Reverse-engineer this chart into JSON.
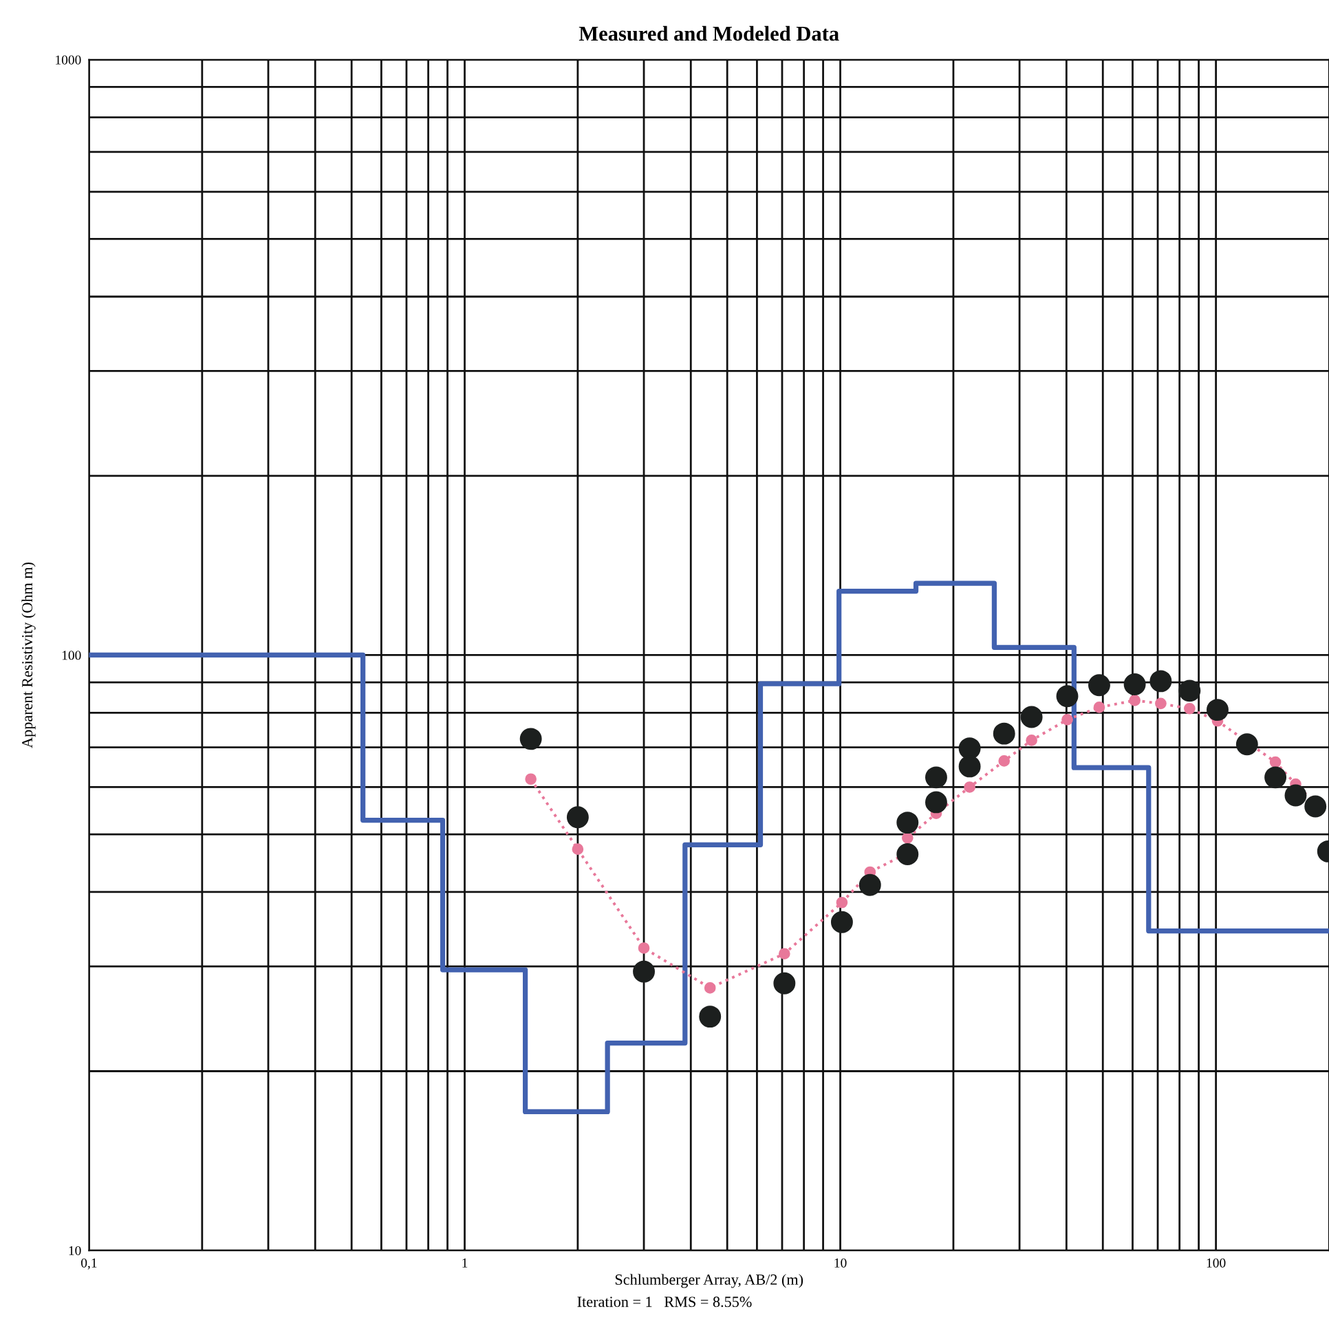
{
  "chart_data": {
    "type": "scatter",
    "title": "Measured and Modeled Data",
    "xlabel": "Schlumberger Array, AB/2 (m)",
    "ylabel": "Apparent Resistivity (Ohm m)",
    "annotations": [
      "Iteration = 1   RMS = 8.55%"
    ],
    "log": "xy",
    "grid": true,
    "legend": false,
    "xlim": [
      0.1,
      200
    ],
    "ylim": [
      10,
      1000
    ],
    "xticks": [
      {
        "value": 0.1,
        "label": "0,1"
      },
      {
        "value": 0.2,
        "label": null
      },
      {
        "value": 0.3,
        "label": null
      },
      {
        "value": 0.4,
        "label": null
      },
      {
        "value": 0.5,
        "label": null
      },
      {
        "value": 0.6,
        "label": null
      },
      {
        "value": 0.7,
        "label": null
      },
      {
        "value": 0.8,
        "label": null
      },
      {
        "value": 0.9,
        "label": null
      },
      1,
      {
        "value": 2,
        "label": null
      },
      {
        "value": 3,
        "label": null
      },
      {
        "value": 4,
        "label": null
      },
      {
        "value": 5,
        "label": null
      },
      {
        "value": 6,
        "label": null
      },
      {
        "value": 7,
        "label": null
      },
      {
        "value": 8,
        "label": null
      },
      {
        "value": 9,
        "label": null
      },
      10,
      {
        "value": 20,
        "label": null
      },
      {
        "value": 30,
        "label": null
      },
      {
        "value": 40,
        "label": null
      },
      {
        "value": 50,
        "label": null
      },
      {
        "value": 60,
        "label": null
      },
      {
        "value": 70,
        "label": null
      },
      {
        "value": 80,
        "label": null
      },
      {
        "value": 90,
        "label": null
      },
      100
    ],
    "yticks": [
      10,
      {
        "value": 20,
        "label": null
      },
      {
        "value": 30,
        "label": null
      },
      {
        "value": 40,
        "label": null
      },
      {
        "value": 50,
        "label": null
      },
      {
        "value": 60,
        "label": null
      },
      {
        "value": 70,
        "label": null
      },
      {
        "value": 80,
        "label": null
      },
      {
        "value": 90,
        "label": null
      },
      100,
      {
        "value": 200,
        "label": null
      },
      {
        "value": 300,
        "label": null
      },
      {
        "value": 400,
        "label": null
      },
      {
        "value": 500,
        "label": null
      },
      {
        "value": 600,
        "label": null
      },
      {
        "value": 700,
        "label": null
      },
      {
        "value": 800,
        "label": null
      },
      {
        "value": 900,
        "label": null
      },
      1000
    ],
    "series": [
      {
        "type": "step",
        "color": "#4262b0",
        "line_style": "solid",
        "marker": "none",
        "x": [
          0.1,
          0.536,
          0.874,
          1.45,
          2.4,
          3.86,
          6.13,
          9.92,
          15.9,
          25.7,
          41.9,
          66.2,
          200
        ],
        "values": [
          100,
          52.8,
          29.6,
          17.1,
          22.3,
          48.0,
          89.5,
          128,
          132,
          103,
          64.7,
          34.4,
          34.4
        ]
      },
      {
        "type": "line",
        "color": "#e8789a",
        "line_style": "dotted",
        "marker": "circle",
        "x": [
          1.5,
          2.0,
          3.0,
          4.5,
          7.1,
          10.1,
          12.0,
          15.1,
          15.1,
          18.0,
          22.1,
          27.3,
          32.3,
          40.2,
          48.9,
          60.8,
          71.3,
          85.1,
          101,
          121,
          144,
          163,
          184
        ],
        "values": [
          61.9,
          47.2,
          32.2,
          27.6,
          31.5,
          38.4,
          43.2,
          46.5,
          49.3,
          54.2,
          60.0,
          66.4,
          71.9,
          77.9,
          81.7,
          83.9,
          82.9,
          81.3,
          77.5,
          71.5,
          66.1,
          60.7,
          56.3
        ]
      },
      {
        "color": "#1c1f1e",
        "marker": "circle",
        "x": [
          1.5,
          2.0,
          3.0,
          4.5,
          7.1,
          10.1,
          12.0,
          15.1,
          15.1,
          18.0,
          18.0,
          22.1,
          22.1,
          27.3,
          32.3,
          40.2,
          48.9,
          60.8,
          71.3,
          85.1,
          101,
          121,
          144,
          163,
          184,
          199
        ],
        "values": [
          72.3,
          53.4,
          29.4,
          24.7,
          28.1,
          35.6,
          41.1,
          52.3,
          46.3,
          62.3,
          56.6,
          69.7,
          65.0,
          73.8,
          78.7,
          85.3,
          89.0,
          89.3,
          90.4,
          87.1,
          80.9,
          70.8,
          62.3,
          58.1,
          55.7,
          46.8
        ]
      }
    ]
  }
}
